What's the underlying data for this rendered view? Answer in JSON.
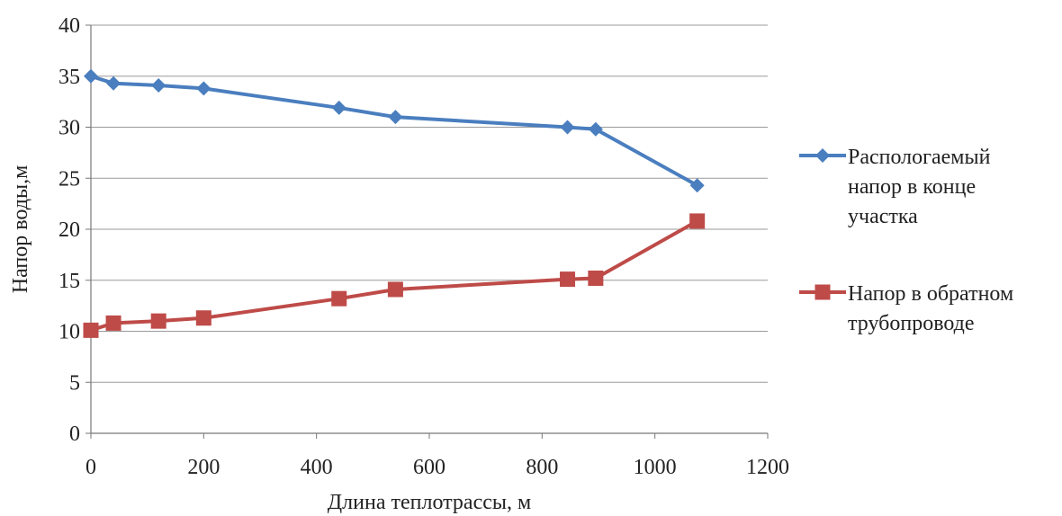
{
  "chart_data": {
    "type": "line",
    "title": "",
    "xlabel": "Длина теплотрассы, м",
    "ylabel": "Напор воды,м",
    "xlim": [
      0,
      1200
    ],
    "ylim": [
      0,
      40
    ],
    "xticks": [
      "0",
      "200",
      "400",
      "600",
      "800",
      "1000",
      "1200"
    ],
    "yticks": [
      "0",
      "5",
      "10",
      "15",
      "20",
      "25",
      "30",
      "35",
      "40"
    ],
    "grid": "horizontal",
    "legend_position": "right",
    "series": [
      {
        "name_lines": [
          "Распологаемый",
          "напор в конце",
          "участка"
        ],
        "color": "#4a7ebf",
        "marker": "diamond",
        "x": [
          0,
          40,
          120,
          200,
          440,
          540,
          845,
          895,
          1075
        ],
        "y": [
          35.0,
          34.3,
          34.1,
          33.8,
          31.9,
          31.0,
          30.0,
          29.8,
          24.3
        ]
      },
      {
        "name_lines": [
          "Напор в обратном",
          "трубопроводе"
        ],
        "color": "#be4b48",
        "marker": "square",
        "x": [
          0,
          40,
          120,
          200,
          440,
          540,
          845,
          895,
          1075
        ],
        "y": [
          10.1,
          10.8,
          11.0,
          11.3,
          13.2,
          14.1,
          15.1,
          15.2,
          20.8
        ]
      }
    ]
  }
}
